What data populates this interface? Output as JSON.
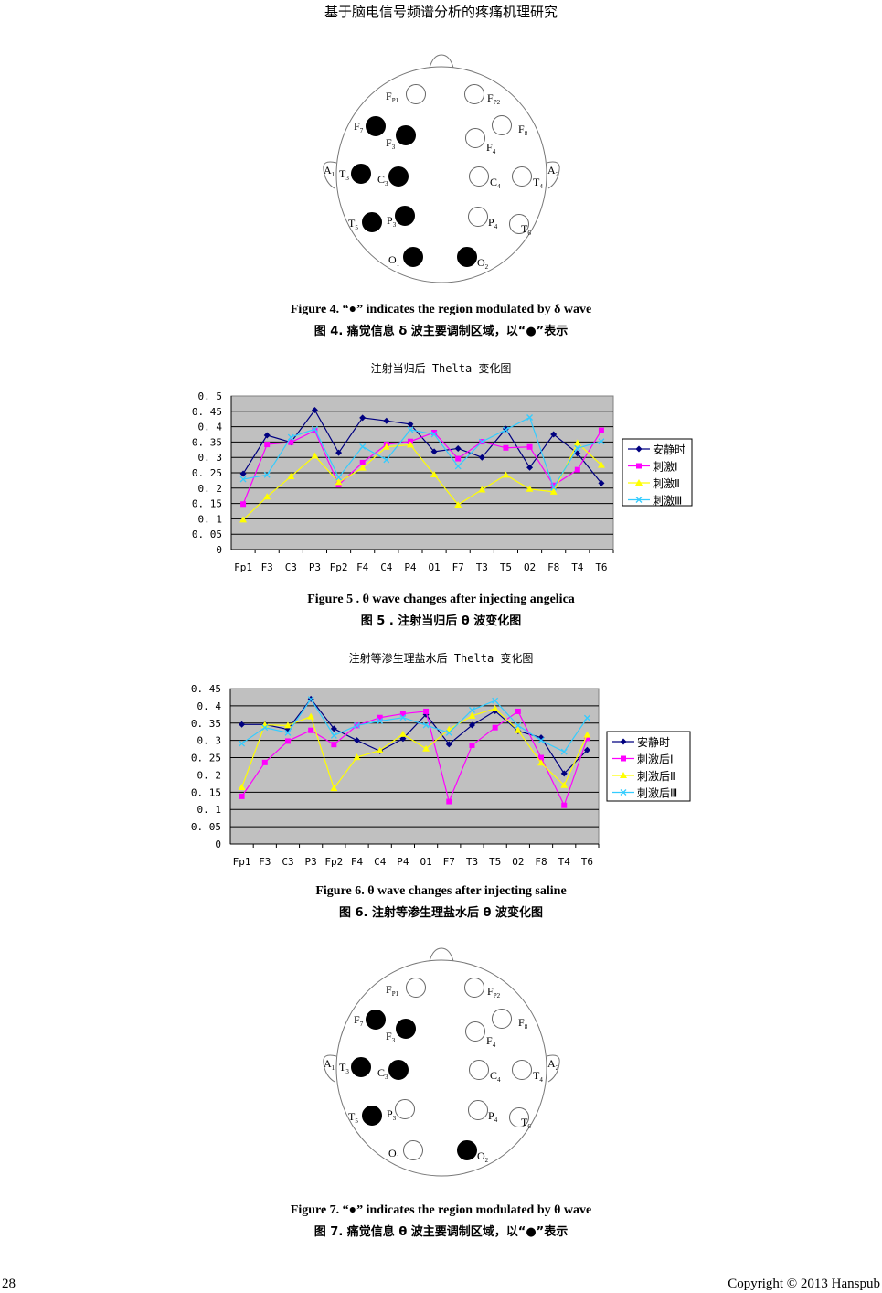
{
  "header": {
    "running_title": "基于脑电信号频谱分析的疼痛机理研究"
  },
  "figure4": {
    "caption_en": "Figure 4. “●” indicates the region modulated by δ wave",
    "caption_zh": "图 4. 痛觉信息 δ 波主要调制区域，以“●”表示",
    "ears": [
      {
        "main": "A",
        "sub": "1"
      },
      {
        "main": "A",
        "sub": "2"
      }
    ],
    "electrodes": [
      {
        "id": "Fp1",
        "main": "F",
        "sub": "P1",
        "filled": false
      },
      {
        "id": "Fp2",
        "main": "F",
        "sub": "P2",
        "filled": false
      },
      {
        "id": "F7",
        "main": "F",
        "sub": "7",
        "filled": true
      },
      {
        "id": "F3",
        "main": "F",
        "sub": "3",
        "filled": true
      },
      {
        "id": "F4",
        "main": "F",
        "sub": "4",
        "filled": false
      },
      {
        "id": "F8",
        "main": "F",
        "sub": "8",
        "filled": false
      },
      {
        "id": "T3",
        "main": "T",
        "sub": "3",
        "filled": true
      },
      {
        "id": "C3",
        "main": "C",
        "sub": "3",
        "filled": true
      },
      {
        "id": "C4",
        "main": "C",
        "sub": "4",
        "filled": false
      },
      {
        "id": "T4",
        "main": "T",
        "sub": "4",
        "filled": false
      },
      {
        "id": "T5",
        "main": "T",
        "sub": "5",
        "filled": true
      },
      {
        "id": "P3",
        "main": "P",
        "sub": "3",
        "filled": true
      },
      {
        "id": "P4",
        "main": "P",
        "sub": "4",
        "filled": false
      },
      {
        "id": "T6",
        "main": "T",
        "sub": "6",
        "filled": false
      },
      {
        "id": "O1",
        "main": "O",
        "sub": "1",
        "filled": true
      },
      {
        "id": "O2",
        "main": "O",
        "sub": "2",
        "filled": true
      }
    ]
  },
  "figure5": {
    "caption_en": "Figure 5 . θ wave changes after injecting angelica",
    "caption_zh": "图 5 . 注射当归后 θ 波变化图"
  },
  "figure6": {
    "caption_en": "Figure 6. θ wave changes after injecting saline",
    "caption_zh": "图 6. 注射等渗生理盐水后 θ 波变化图"
  },
  "figure7": {
    "caption_en": "Figure 7. “●” indicates the region modulated by θ wave",
    "caption_zh": "图 7. 痛觉信息 θ 波主要调制区域，以“●”表示",
    "ears": [
      {
        "main": "A",
        "sub": "1"
      },
      {
        "main": "A",
        "sub": "2"
      }
    ],
    "electrodes": [
      {
        "id": "Fp1",
        "main": "F",
        "sub": "P1",
        "filled": false
      },
      {
        "id": "Fp2",
        "main": "F",
        "sub": "P2",
        "filled": false
      },
      {
        "id": "F7",
        "main": "F",
        "sub": "7",
        "filled": true
      },
      {
        "id": "F3",
        "main": "F",
        "sub": "3",
        "filled": true
      },
      {
        "id": "F4",
        "main": "F",
        "sub": "4",
        "filled": false
      },
      {
        "id": "F8",
        "main": "F",
        "sub": "8",
        "filled": false
      },
      {
        "id": "T3",
        "main": "T",
        "sub": "3",
        "filled": true
      },
      {
        "id": "C3",
        "main": "C",
        "sub": "3",
        "filled": true
      },
      {
        "id": "C4",
        "main": "C",
        "sub": "4",
        "filled": false
      },
      {
        "id": "T4",
        "main": "T",
        "sub": "4",
        "filled": false
      },
      {
        "id": "T5",
        "main": "T",
        "sub": "5",
        "filled": true
      },
      {
        "id": "P3",
        "main": "P",
        "sub": "3",
        "filled": false
      },
      {
        "id": "P4",
        "main": "P",
        "sub": "4",
        "filled": false
      },
      {
        "id": "T6",
        "main": "T",
        "sub": "6",
        "filled": false
      },
      {
        "id": "O1",
        "main": "O",
        "sub": "1",
        "filled": false
      },
      {
        "id": "O2",
        "main": "O",
        "sub": "2",
        "filled": true
      }
    ]
  },
  "chart_data": [
    {
      "type": "line",
      "title": "注射当归后 Thelta 变化图",
      "categories": [
        "Fp1",
        "F3",
        "C3",
        "P3",
        "Fp2",
        "F4",
        "C4",
        "P4",
        "O1",
        "F7",
        "T3",
        "T5",
        "O2",
        "F8",
        "T4",
        "T6"
      ],
      "ylim": [
        0,
        0.5
      ],
      "yticks": [
        "0",
        "0.05",
        "0.1",
        "0.15",
        "0.2",
        "0.25",
        "0.3",
        "0.35",
        "0.4",
        "0.45",
        "0.5"
      ],
      "grid": true,
      "legend": "right",
      "background": "#c0c0c0",
      "series": [
        {
          "name": "安静时",
          "color": "#000080",
          "marker": "diamond",
          "values": [
            0.247,
            0.372,
            0.349,
            0.454,
            0.315,
            0.429,
            0.419,
            0.408,
            0.319,
            0.329,
            0.3,
            0.393,
            0.267,
            0.375,
            0.313,
            0.216
          ]
        },
        {
          "name": "刺激Ⅰ",
          "color": "#ff00ff",
          "marker": "square",
          "values": [
            0.148,
            0.342,
            0.349,
            0.387,
            0.211,
            0.283,
            0.342,
            0.352,
            0.381,
            0.296,
            0.351,
            0.331,
            0.334,
            0.209,
            0.26,
            0.388
          ]
        },
        {
          "name": "刺激Ⅱ",
          "color": "#ffff00",
          "marker": "triangle",
          "values": [
            0.097,
            0.172,
            0.238,
            0.305,
            0.219,
            0.266,
            0.334,
            0.341,
            0.244,
            0.146,
            0.195,
            0.243,
            0.197,
            0.188,
            0.347,
            0.275
          ]
        },
        {
          "name": "刺激Ⅲ",
          "color": "#33ccff",
          "marker": "x",
          "values": [
            0.229,
            0.243,
            0.366,
            0.392,
            0.235,
            0.335,
            0.292,
            0.39,
            0.375,
            0.271,
            0.351,
            0.39,
            0.43,
            0.202,
            0.33,
            0.352
          ]
        }
      ]
    },
    {
      "type": "line",
      "title": "注射等渗生理盐水后 Thelta 变化图",
      "categories": [
        "Fp1",
        "F3",
        "C3",
        "P3",
        "Fp2",
        "F4",
        "C4",
        "P4",
        "O1",
        "F7",
        "T3",
        "T5",
        "O2",
        "F8",
        "T4",
        "T6"
      ],
      "ylim": [
        0,
        0.45
      ],
      "yticks": [
        "0",
        "0.05",
        "0.1",
        "0.15",
        "0.2",
        "0.25",
        "0.3",
        "0.35",
        "0.4",
        "0.45"
      ],
      "grid": true,
      "legend": "right",
      "background": "#c0c0c0",
      "series": [
        {
          "name": "安静时",
          "color": "#000080",
          "marker": "diamond",
          "values": [
            0.346,
            0.346,
            0.332,
            0.42,
            0.334,
            0.3,
            0.269,
            0.305,
            0.375,
            0.289,
            0.344,
            0.385,
            0.327,
            0.308,
            0.204,
            0.272
          ]
        },
        {
          "name": "刺激后Ⅰ",
          "color": "#ff00ff",
          "marker": "square",
          "values": [
            0.138,
            0.236,
            0.298,
            0.329,
            0.288,
            0.343,
            0.366,
            0.377,
            0.384,
            0.123,
            0.286,
            0.337,
            0.384,
            0.25,
            0.112,
            0.306
          ]
        },
        {
          "name": "刺激后Ⅱ",
          "color": "#ffff00",
          "marker": "triangle",
          "values": [
            0.164,
            0.345,
            0.343,
            0.369,
            0.161,
            0.251,
            0.271,
            0.318,
            0.276,
            0.332,
            0.371,
            0.392,
            0.329,
            0.235,
            0.17,
            0.316
          ]
        },
        {
          "name": "刺激后Ⅲ",
          "color": "#33ccff",
          "marker": "x",
          "values": [
            0.291,
            0.337,
            0.322,
            0.419,
            0.314,
            0.343,
            0.356,
            0.366,
            0.344,
            0.322,
            0.388,
            0.415,
            0.343,
            0.3,
            0.267,
            0.365
          ]
        }
      ]
    }
  ],
  "footer": {
    "page_number": "28",
    "copyright": "Copyright © 2013 Hanspub"
  }
}
